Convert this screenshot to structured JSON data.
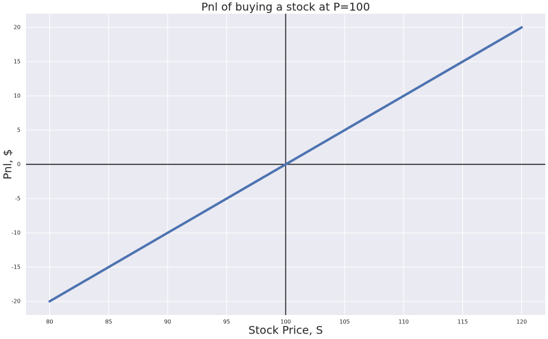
{
  "chart_data": {
    "type": "line",
    "title": "Pnl of buying a stock at P=100",
    "xlabel": "Stock Price, S",
    "ylabel": "Pnl, $",
    "x": [
      80,
      120
    ],
    "series": [
      {
        "name": "Pnl",
        "color": "#4c72b0",
        "values": [
          -20,
          20
        ]
      }
    ],
    "xlim": [
      78,
      122
    ],
    "ylim": [
      -22,
      22
    ],
    "xticks": [
      80,
      85,
      90,
      95,
      100,
      105,
      110,
      115,
      120
    ],
    "yticks": [
      -20,
      -15,
      -10,
      -5,
      0,
      5,
      10,
      15,
      20
    ],
    "hlines": [
      0
    ],
    "vlines": [
      100
    ],
    "grid": true,
    "legend": false
  }
}
